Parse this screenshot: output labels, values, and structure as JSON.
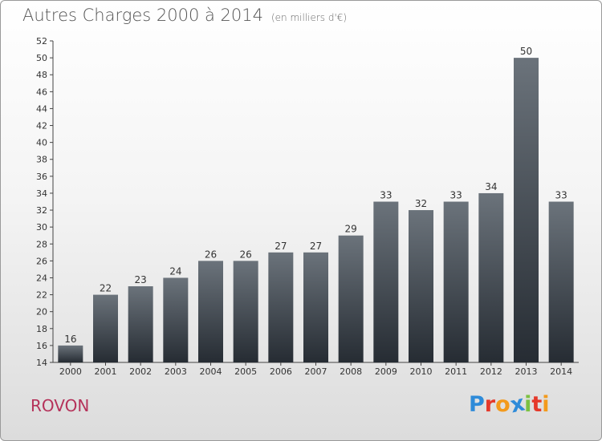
{
  "header": {
    "title": "Autres Charges 2000 à 2014",
    "subtitle": "(en milliers d'€)"
  },
  "footer": {
    "commune": "ROVON",
    "logo_letters": [
      "P",
      "r",
      "o",
      "x",
      "i",
      "t",
      "i"
    ]
  },
  "colors": {
    "bar_top": "#6b737b",
    "bar_bottom": "#262c33",
    "commune": "#b5325a",
    "logo": [
      "#2e8bd9",
      "#e5392b",
      "#f39a1c",
      "#2e8bd9",
      "#7cc142",
      "#e5392b",
      "#f39a1c"
    ]
  },
  "chart_data": {
    "type": "bar",
    "title": "Autres Charges 2000 à 2014",
    "subtitle": "(en milliers d'€)",
    "categories": [
      "2000",
      "2001",
      "2002",
      "2003",
      "2004",
      "2005",
      "2006",
      "2007",
      "2008",
      "2009",
      "2010",
      "2011",
      "2012",
      "2013",
      "2014"
    ],
    "values": [
      16,
      22,
      23,
      24,
      26,
      26,
      27,
      27,
      29,
      33,
      32,
      33,
      34,
      50,
      33
    ],
    "ylim": [
      14,
      52
    ],
    "yticks": [
      14,
      16,
      18,
      20,
      22,
      24,
      26,
      28,
      30,
      32,
      34,
      36,
      38,
      40,
      42,
      44,
      46,
      48,
      50,
      52
    ],
    "grid": false
  }
}
